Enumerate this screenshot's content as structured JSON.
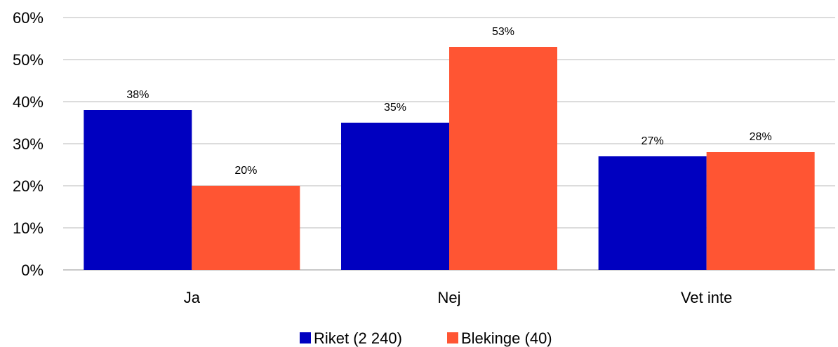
{
  "chart_data": {
    "type": "bar",
    "categories": [
      "Ja",
      "Nej",
      "Vet inte"
    ],
    "series": [
      {
        "name": "Riket (2 240)",
        "color": "#0000c0",
        "values": [
          38,
          35,
          27
        ]
      },
      {
        "name": "Blekinge (40)",
        "color": "#ff5533",
        "values": [
          20,
          53,
          28
        ]
      }
    ],
    "data_labels": [
      [
        "38%",
        "35%",
        "27%"
      ],
      [
        "20%",
        "53%",
        "28%"
      ]
    ],
    "y_ticks": [
      "0%",
      "10%",
      "20%",
      "30%",
      "40%",
      "50%",
      "60%"
    ],
    "ylim": [
      0,
      60
    ],
    "grid": true,
    "legend_position": "bottom"
  }
}
